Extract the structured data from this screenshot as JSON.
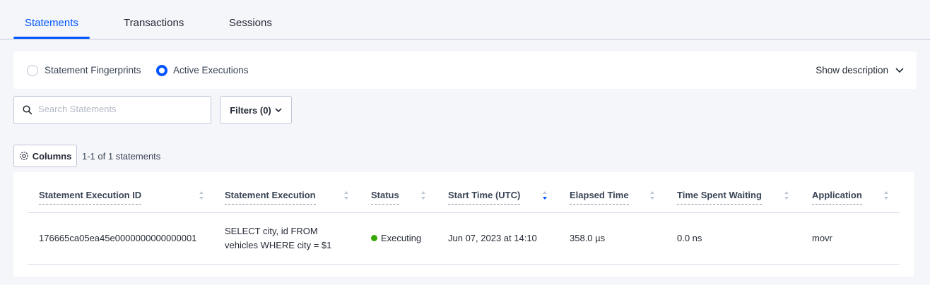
{
  "tabs": [
    {
      "label": "Statements",
      "active": true
    },
    {
      "label": "Transactions"
    },
    {
      "label": "Sessions"
    }
  ],
  "view_toggle": {
    "options": [
      {
        "label": "Statement Fingerprints",
        "selected": false
      },
      {
        "label": "Active Executions",
        "selected": true
      }
    ],
    "show_description": "Show description"
  },
  "search": {
    "placeholder": "Search Statements",
    "value": ""
  },
  "filters_label": "Filters (0)",
  "columns_label": "Columns",
  "count_text": "1-1 of 1 statements",
  "table": {
    "headers": [
      "Statement Execution ID",
      "Statement Execution",
      "Status",
      "Start Time (UTC)",
      "Elapsed Time",
      "Time Spent Waiting",
      "Application"
    ],
    "sorted_column": "Start Time (UTC)",
    "sort_direction": "descending",
    "rows": [
      {
        "id": "176665ca05ea45e0000000000000001",
        "statement": "SELECT city, id FROM vehicles WHERE city = $1",
        "status": "Executing",
        "start_time": "Jun 07, 2023 at 14:10",
        "elapsed": "358.0 µs",
        "waiting": "0.0 ns",
        "application": "movr"
      }
    ]
  },
  "colors": {
    "accent": "#0055ff",
    "status_executing": "#37a806"
  }
}
